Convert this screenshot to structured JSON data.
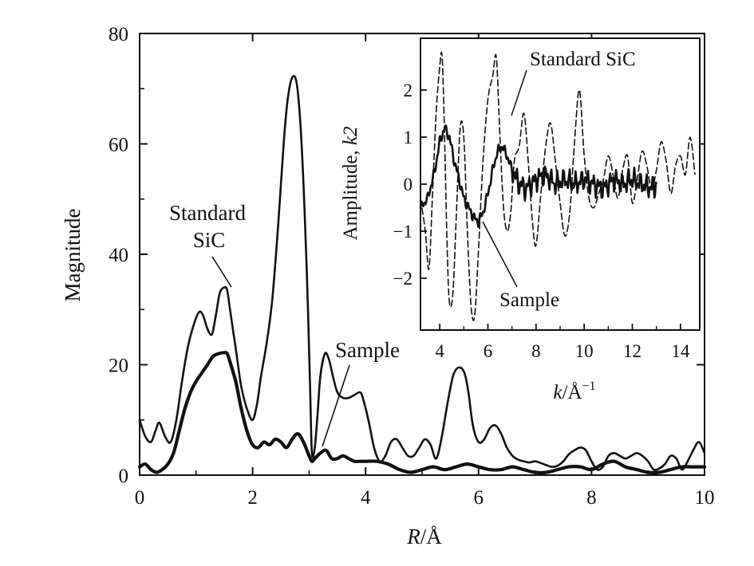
{
  "chart_data": [
    {
      "type": "line",
      "xlabel_italic": "R",
      "xlabel_unit": "/Å",
      "ylabel": "Magnitude",
      "xlim": [
        0,
        10
      ],
      "ylim": [
        0,
        80
      ],
      "xticks": [
        "0",
        "2",
        "4",
        "6",
        "8",
        "10"
      ],
      "yticks": [
        "0",
        "20",
        "40",
        "60",
        "80"
      ],
      "grid": false,
      "annotations": {
        "standard_line1": "Standard",
        "standard_line2": "SiC",
        "sample": "Sample"
      },
      "series": [
        {
          "key": "standard",
          "style": "thin",
          "x": [
            0,
            0.1,
            0.2,
            0.28,
            0.35,
            0.45,
            0.55,
            0.65,
            0.75,
            0.85,
            0.95,
            1.05,
            1.12,
            1.2,
            1.28,
            1.35,
            1.42,
            1.5,
            1.55,
            1.6,
            1.7,
            1.8,
            1.9,
            2.0,
            2.08,
            2.15,
            2.25,
            2.35,
            2.45,
            2.55,
            2.62,
            2.7,
            2.78,
            2.85,
            2.92,
            2.98,
            3.02,
            3.05,
            3.1,
            3.15,
            3.2,
            3.28,
            3.35,
            3.42,
            3.5,
            3.6,
            3.7,
            3.8,
            3.9,
            3.95,
            4.05,
            4.15,
            4.25,
            4.35,
            4.45,
            4.55,
            4.65,
            4.75,
            4.85,
            4.95,
            5.05,
            5.15,
            5.25,
            5.35,
            5.45,
            5.55,
            5.65,
            5.75,
            5.82,
            5.9,
            6.0,
            6.1,
            6.2,
            6.3,
            6.4,
            6.5,
            6.6,
            6.7,
            6.8,
            6.9,
            7.0,
            7.1,
            7.2,
            7.3,
            7.4,
            7.5,
            7.6,
            7.7,
            7.8,
            7.9,
            8.0,
            8.1,
            8.2,
            8.3,
            8.4,
            8.5,
            8.6,
            8.7,
            8.8,
            8.9,
            9.0,
            9.1,
            9.2,
            9.3,
            9.4,
            9.5,
            9.6,
            9.7,
            9.8,
            9.9,
            10.0
          ],
          "y": [
            10,
            7,
            6,
            8,
            9.5,
            7,
            6,
            10,
            17,
            23,
            27,
            29.5,
            29,
            26.5,
            25.5,
            29,
            33,
            34,
            33.5,
            30,
            23,
            16,
            12,
            10,
            13,
            18,
            24,
            32,
            45,
            60,
            68,
            72,
            71,
            63,
            48,
            30,
            15,
            4,
            5,
            11,
            18,
            22,
            21,
            18,
            15,
            14,
            14,
            14.5,
            15,
            14,
            10,
            5,
            2.5,
            3.5,
            6,
            6.5,
            5,
            3.5,
            3.5,
            5,
            6.5,
            5.5,
            3,
            7,
            13,
            18,
            19.5,
            18.5,
            15,
            9,
            6,
            6.5,
            8.5,
            9,
            7.5,
            5,
            3.5,
            2.8,
            2.5,
            2.3,
            2.5,
            2.2,
            1.8,
            1.5,
            1.7,
            2.5,
            3.8,
            4.5,
            5,
            4.5,
            2.5,
            1,
            1.5,
            3.5,
            4,
            3.5,
            3,
            3.5,
            4,
            3.5,
            2.5,
            1,
            1.2,
            2,
            3.5,
            3,
            1,
            2.5,
            4.5,
            6,
            4
          ]
        },
        {
          "key": "sample",
          "style": "thick",
          "x": [
            0,
            0.1,
            0.2,
            0.3,
            0.4,
            0.5,
            0.6,
            0.7,
            0.8,
            0.9,
            1.0,
            1.1,
            1.2,
            1.3,
            1.4,
            1.5,
            1.55,
            1.6,
            1.7,
            1.8,
            1.9,
            2.0,
            2.1,
            2.2,
            2.3,
            2.4,
            2.5,
            2.6,
            2.7,
            2.8,
            2.9,
            3.0,
            3.05,
            3.1,
            3.2,
            3.3,
            3.4,
            3.5,
            3.6,
            3.7,
            3.8,
            3.9,
            4.0,
            4.2,
            4.4,
            4.6,
            4.8,
            5.0,
            5.2,
            5.4,
            5.6,
            5.8,
            6.0,
            6.2,
            6.4,
            6.6,
            6.8,
            7.0,
            7.2,
            7.4,
            7.6,
            7.8,
            8.0,
            8.2,
            8.4,
            8.6,
            8.8,
            9.0,
            9.2,
            9.4,
            9.6,
            9.8,
            10.0
          ],
          "y": [
            1.5,
            2.0,
            1.0,
            0.5,
            1.0,
            2.0,
            4.0,
            8.0,
            12.0,
            15.0,
            17.0,
            18.5,
            20.0,
            21.5,
            22.0,
            22.2,
            22.0,
            20.5,
            17.0,
            12.0,
            8.0,
            5.5,
            5.0,
            6.0,
            5.5,
            6.5,
            6.0,
            5.0,
            6.5,
            7.5,
            6.0,
            3.5,
            2.5,
            3.0,
            4.0,
            4.5,
            3.0,
            3.0,
            3.5,
            3.0,
            2.5,
            2.5,
            2.5,
            2.5,
            2.0,
            1.0,
            0.5,
            1.0,
            1.5,
            1.0,
            1.5,
            2.0,
            1.5,
            1.0,
            1.0,
            1.5,
            1.0,
            0.5,
            0.5,
            1.0,
            1.5,
            1.5,
            1.0,
            2.0,
            2.5,
            1.5,
            1.0,
            0.5,
            0.5,
            1.0,
            1.5,
            1.5,
            1.5
          ]
        }
      ]
    },
    {
      "type": "line",
      "xlabel_italic": "k",
      "xlabel_unit": "/Å",
      "xlabel_sup": "−1",
      "ylabel": "Amplitude, ",
      "ylabel_italic": "k2",
      "xlim": [
        3.2,
        14.8
      ],
      "ylim": [
        -3.1,
        3.1
      ],
      "xticks": [
        "4",
        "6",
        "8",
        "10",
        "12",
        "14"
      ],
      "yticks": [
        "−2",
        "−1",
        "0",
        "1",
        "2"
      ],
      "annotations": {
        "standard": "Standard SiC",
        "sample": "Sample"
      },
      "series": [
        {
          "key": "inset-standard",
          "style": "dashed",
          "x": [
            3.2,
            3.4,
            3.55,
            3.7,
            3.85,
            4.0,
            4.1,
            4.2,
            4.3,
            4.4,
            4.55,
            4.7,
            4.85,
            5.0,
            5.15,
            5.3,
            5.45,
            5.6,
            5.8,
            6.0,
            6.2,
            6.35,
            6.5,
            6.65,
            6.8,
            6.95,
            7.1,
            7.3,
            7.5,
            7.7,
            7.85,
            8.0,
            8.2,
            8.4,
            8.6,
            8.8,
            9.0,
            9.2,
            9.4,
            9.6,
            9.8,
            10.0,
            10.2,
            10.4,
            10.6,
            10.8,
            11.0,
            11.2,
            11.4,
            11.6,
            11.8,
            12.0,
            12.2,
            12.4,
            12.6,
            12.8,
            13.0,
            13.2,
            13.4,
            13.6,
            13.8,
            14.0,
            14.2,
            14.4,
            14.6
          ],
          "y": [
            -0.3,
            -1.0,
            -1.8,
            -0.2,
            1.5,
            2.5,
            2.7,
            1.0,
            -1.2,
            -2.5,
            -2.3,
            -0.5,
            1.2,
            1.0,
            -1.0,
            -2.6,
            -2.8,
            -1.5,
            0.5,
            1.8,
            2.3,
            2.7,
            1.0,
            -0.5,
            -1.0,
            -0.6,
            0.5,
            0.8,
            1.5,
            0.3,
            -0.8,
            -1.3,
            -0.2,
            0.8,
            1.3,
            0.5,
            -0.4,
            -1.1,
            -0.6,
            0.9,
            2.0,
            0.6,
            -0.3,
            -0.5,
            -0.2,
            0.1,
            0.6,
            0.2,
            -0.3,
            0.3,
            0.6,
            -0.4,
            0.1,
            0.7,
            0.4,
            -0.1,
            0.3,
            0.9,
            0.5,
            -0.2,
            0.4,
            0.6,
            0.2,
            1.0,
            0.2
          ]
        },
        {
          "key": "inset-sample",
          "style": "thick-noisy",
          "x": [
            3.2,
            3.5,
            3.8,
            4.0,
            4.2,
            4.4,
            4.6,
            4.8,
            5.0,
            5.2,
            5.4,
            5.6,
            5.8,
            6.0,
            6.2,
            6.4,
            6.6,
            6.8,
            7.0,
            7.3,
            7.6,
            8.0,
            8.4,
            8.8,
            9.2,
            9.6,
            10.0,
            10.4,
            10.8,
            11.2,
            11.6,
            12.0,
            12.4,
            12.8,
            13.0
          ],
          "y": [
            -0.5,
            -0.3,
            0.3,
            0.9,
            1.2,
            1.0,
            0.5,
            0.1,
            -0.3,
            -0.5,
            -0.7,
            -0.8,
            -0.6,
            -0.2,
            0.3,
            0.7,
            0.8,
            0.6,
            0.3,
            0.0,
            -0.1,
            0.1,
            0.2,
            0.0,
            0.1,
            0.0,
            0.1,
            0.0,
            -0.1,
            0.1,
            0.0,
            0.1,
            0.0,
            -0.1,
            0.0
          ]
        }
      ]
    }
  ]
}
